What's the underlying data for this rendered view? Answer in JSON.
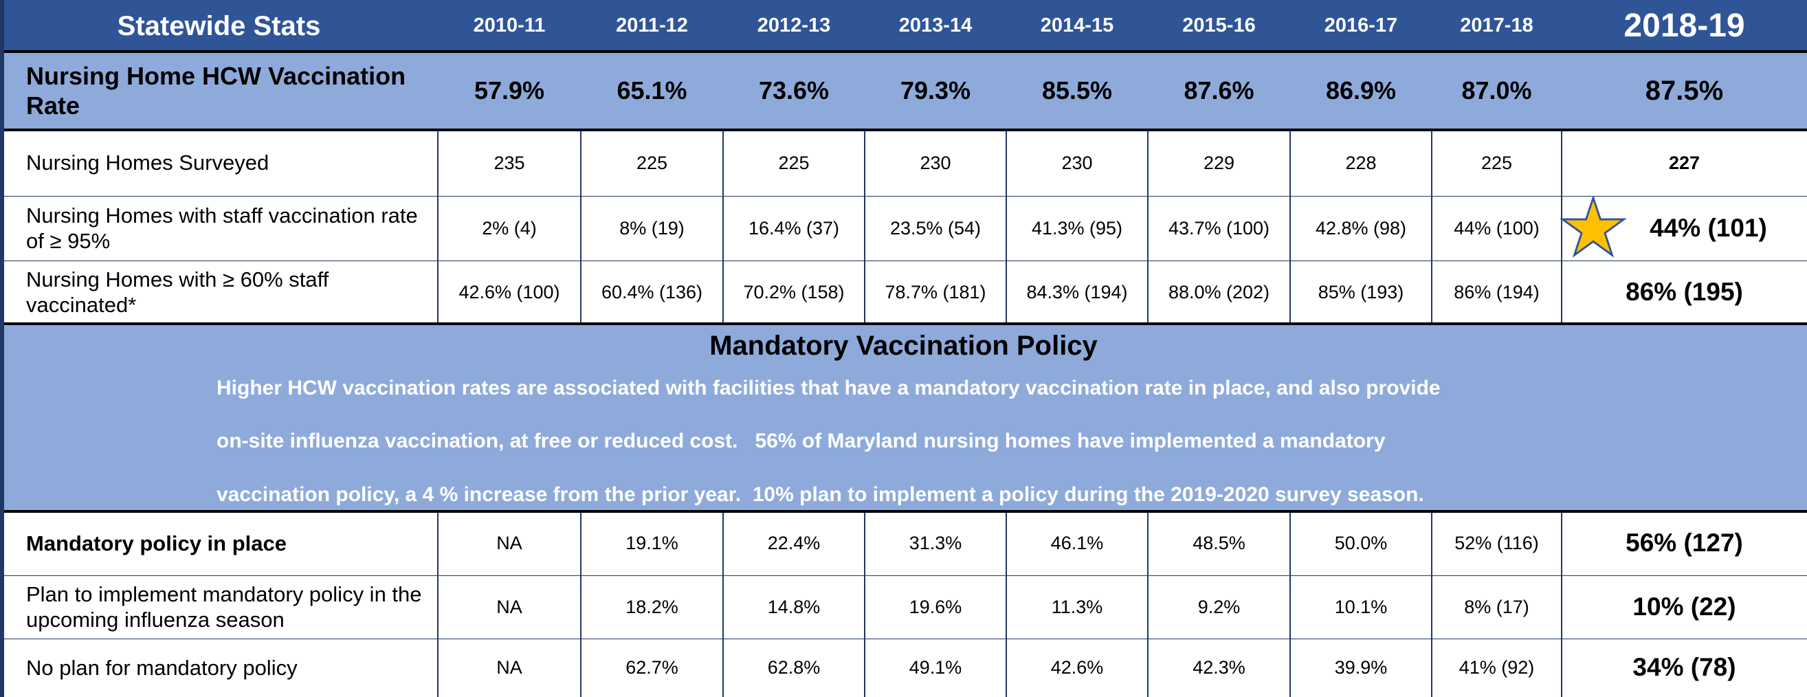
{
  "header": {
    "title": "Statewide Stats",
    "years": [
      "2010-11",
      "2011-12",
      "2012-13",
      "2013-14",
      "2014-15",
      "2015-16",
      "2016-17",
      "2017-18",
      "2018-19"
    ]
  },
  "rate_row": {
    "label": "Nursing Home HCW Vaccination Rate",
    "values": [
      "57.9%",
      "65.1%",
      "73.6%",
      "79.3%",
      "85.5%",
      "87.6%",
      "86.9%",
      "87.0%",
      "87.5%"
    ]
  },
  "rows": [
    {
      "label": "Nursing Homes Surveyed",
      "values": [
        "235",
        "225",
        "225",
        "230",
        "230",
        "229",
        "228",
        "225",
        "227"
      ]
    },
    {
      "label": "Nursing Homes with staff vaccination rate of ≥ 95%",
      "values": [
        "2% (4)",
        "8% (19)",
        "16.4% (37)",
        "23.5% (54)",
        "41.3%  (95)",
        "43.7%  (100)",
        "42.8% (98)",
        "44% (100)",
        "44% (101)"
      ]
    },
    {
      "label": "Nursing Homes with ≥ 60% staff vaccinated*",
      "values": [
        "42.6% (100)",
        "60.4% (136)",
        "70.2% (158)",
        "78.7% (181)",
        "84.3% (194)",
        "88.0% (202)",
        "85% (193)",
        "86% (194)",
        "86% (195)"
      ]
    }
  ],
  "policy": {
    "title": "Mandatory Vaccination Policy",
    "text": [
      "Higher HCW vaccination rates are associated with facilities that have a mandatory vaccination rate in place, and also provide",
      "on-site influenza vaccination, at free or reduced cost.   56% of Maryland nursing homes have implemented a mandatory",
      "vaccination policy, a 4 % increase from the prior year.  10% plan to implement a policy during the 2019-2020 survey season."
    ]
  },
  "policy_rows": [
    {
      "label": "Mandatory policy in place",
      "values": [
        "NA",
        "19.1%",
        "22.4%",
        "31.3%",
        "46.1%",
        "48.5%",
        "50.0%",
        "52% (116)",
        "56% (127)"
      ]
    },
    {
      "label": "Plan to implement mandatory policy in the upcoming influenza season",
      "values": [
        "NA",
        "18.2%",
        "14.8%",
        "19.6%",
        "11.3%",
        "9.2%",
        "10.1%",
        "8% (17)",
        "10% (22)"
      ]
    },
    {
      "label": "No plan for mandatory policy",
      "values": [
        "NA",
        "62.7%",
        "62.8%",
        "49.1%",
        "42.6%",
        "42.3%",
        "39.9%",
        "41% (92)",
        "34% (78)"
      ]
    }
  ]
}
